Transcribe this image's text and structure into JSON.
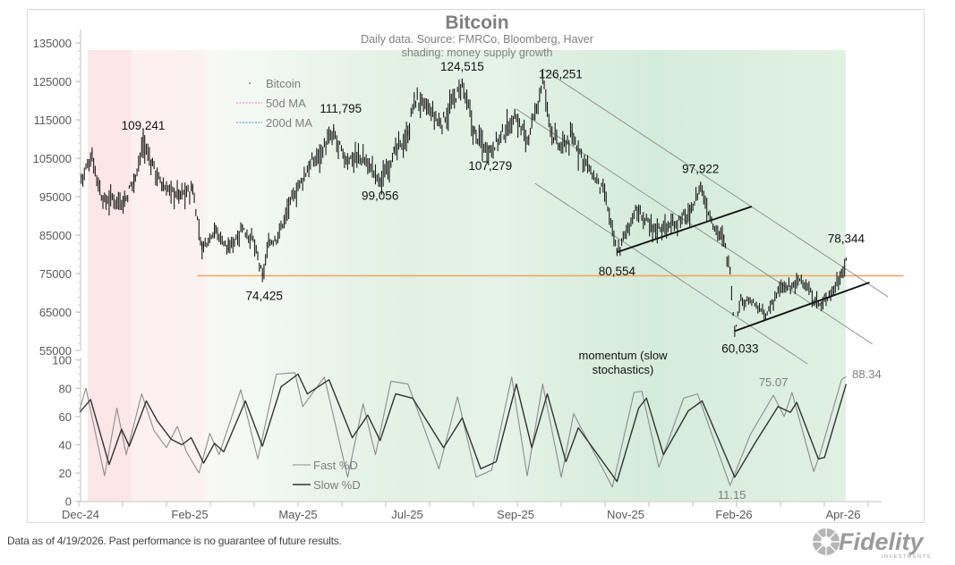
{
  "chart_data": [
    {
      "type": "bar",
      "subtype": "price-bars (daily)",
      "title": "Bitcoin",
      "subtitle_lines": [
        "Daily data.  Source: FMRCo, Bloomberg, Haver",
        "shading: money supply growth"
      ],
      "ylim": [
        55000,
        140000
      ],
      "yticks": [
        55000,
        65000,
        75000,
        85000,
        95000,
        105000,
        115000,
        125000,
        135000
      ],
      "xticks": [
        "Dec-24",
        "Feb-25",
        "May-25",
        "Jul-25",
        "Sep-25",
        "Nov-25",
        "Feb-26",
        "Apr-26"
      ],
      "legend": {
        "placement": "top-left",
        "entries": [
          {
            "label": "Bitcoin",
            "color": "#666666",
            "style": "dot"
          },
          {
            "label": "50d MA",
            "color": "#e377e0",
            "style": "dashed"
          },
          {
            "label": "200d MA",
            "color": "#4a90d9",
            "style": "dashed"
          }
        ]
      },
      "series": [
        {
          "name": "Bitcoin",
          "points": [
            [
              "2024-12-11",
              100000
            ],
            [
              "2024-12-18",
              106000
            ],
            [
              "2024-12-25",
              94000
            ],
            [
              "2024-12-31",
              95000
            ],
            [
              "2025-01-08",
              94000
            ],
            [
              "2025-01-14",
              100000
            ],
            [
              "2025-01-20",
              109241
            ],
            [
              "2025-01-26",
              104000
            ],
            [
              "2025-02-01",
              98000
            ],
            [
              "2025-02-12",
              96000
            ],
            [
              "2025-02-21",
              97000
            ],
            [
              "2025-02-27",
              82000
            ],
            [
              "2025-03-07",
              87000
            ],
            [
              "2025-03-16",
              82000
            ],
            [
              "2025-03-25",
              87000
            ],
            [
              "2025-04-01",
              84000
            ],
            [
              "2025-04-07",
              74425
            ],
            [
              "2025-04-11",
              83000
            ],
            [
              "2025-04-17",
              85000
            ],
            [
              "2025-04-25",
              94000
            ],
            [
              "2025-05-07",
              103000
            ],
            [
              "2025-05-23",
              111795
            ],
            [
              "2025-05-30",
              105000
            ],
            [
              "2025-06-08",
              106000
            ],
            [
              "2025-06-15",
              104000
            ],
            [
              "2025-06-22",
              99056
            ],
            [
              "2025-07-01",
              107000
            ],
            [
              "2025-07-10",
              111000
            ],
            [
              "2025-07-14",
              121000
            ],
            [
              "2025-07-24",
              118000
            ],
            [
              "2025-07-31",
              114000
            ],
            [
              "2025-08-14",
              124515
            ],
            [
              "2025-08-22",
              112000
            ],
            [
              "2025-08-31",
              107279
            ],
            [
              "2025-09-08",
              111000
            ],
            [
              "2025-09-17",
              116000
            ],
            [
              "2025-09-26",
              110000
            ],
            [
              "2025-10-01",
              118000
            ],
            [
              "2025-10-05",
              126251
            ],
            [
              "2025-10-10",
              113000
            ],
            [
              "2025-10-16",
              108000
            ],
            [
              "2025-10-24",
              111000
            ],
            [
              "2025-11-05",
              102000
            ],
            [
              "2025-11-14",
              96000
            ],
            [
              "2025-11-22",
              80554
            ],
            [
              "2025-12-04",
              92000
            ],
            [
              "2025-12-15",
              87000
            ],
            [
              "2025-12-27",
              88000
            ],
            [
              "2026-01-08",
              91000
            ],
            [
              "2026-01-15",
              97922
            ],
            [
              "2026-01-22",
              89000
            ],
            [
              "2026-01-30",
              84000
            ],
            [
              "2026-02-03",
              76000
            ],
            [
              "2026-02-06",
              60033
            ],
            [
              "2026-02-10",
              69000
            ],
            [
              "2026-02-20",
              67000
            ],
            [
              "2026-02-26",
              64000
            ],
            [
              "2026-03-06",
              71000
            ],
            [
              "2026-03-15",
              72000
            ],
            [
              "2026-03-21",
              74000
            ],
            [
              "2026-03-30",
              68000
            ],
            [
              "2026-04-03",
              67000
            ],
            [
              "2026-04-10",
              71000
            ],
            [
              "2026-04-16",
              75000
            ],
            [
              "2026-04-19",
              78344
            ]
          ]
        }
      ],
      "annotations": [
        {
          "text": "109,241",
          "date": "2025-01-20",
          "value": 109241
        },
        {
          "text": "111,795",
          "date": "2025-05-23",
          "value": 111795
        },
        {
          "text": "124,515",
          "date": "2025-08-14",
          "value": 124515
        },
        {
          "text": "126,251",
          "date": "2025-10-05",
          "value": 126251
        },
        {
          "text": "99,056",
          "date": "2025-06-22",
          "value": 99056
        },
        {
          "text": "107,279",
          "date": "2025-08-31",
          "value": 107279
        },
        {
          "text": "97,922",
          "date": "2026-01-15",
          "value": 97922
        },
        {
          "text": "80,554",
          "date": "2025-11-22",
          "value": 80554
        },
        {
          "text": "60,033",
          "date": "2026-02-06",
          "value": 60033
        },
        {
          "text": "78,344",
          "date": "2026-04-19",
          "value": 78344
        },
        {
          "text": "74,425",
          "date": "2025-04-07",
          "value": 74425
        }
      ],
      "reference_lines": [
        {
          "kind": "support",
          "color": "#f0a868",
          "from": [
            "2025-02-24",
            74425
          ],
          "to": [
            "2026-05-26",
            74425
          ]
        },
        {
          "kind": "channel",
          "color": "#8a8a8a",
          "from": [
            "2025-10-05",
            128256
          ],
          "to": [
            "2026-05-16",
            68953
          ]
        },
        {
          "kind": "channel",
          "color": "#8a8a8a",
          "from": [
            "2025-09-18",
            117791
          ],
          "to": [
            "2026-05-06",
            56628
          ]
        },
        {
          "kind": "channel",
          "color": "#8a8a8a",
          "from": [
            "2025-09-30",
            98488
          ],
          "to": [
            "2026-03-25",
            51512
          ]
        },
        {
          "kind": "trend",
          "color": "#111111",
          "from": [
            "2025-11-22",
            80554
          ],
          "to": [
            "2026-02-17",
            92442
          ]
        },
        {
          "kind": "trend",
          "color": "#111111",
          "from": [
            "2026-02-06",
            60033
          ],
          "to": [
            "2026-05-04",
            72674
          ]
        }
      ],
      "shading": {
        "label": "money supply growth",
        "negative_color": "#fde8ea",
        "positive_color": "#d6ecdc"
      }
    },
    {
      "type": "line",
      "title": "momentum (slow stochastics)",
      "title_lines": [
        "momentum (slow",
        "stochastics)"
      ],
      "ylim": [
        0,
        100
      ],
      "yticks": [
        0,
        20,
        40,
        60,
        80,
        100
      ],
      "legend": {
        "placement": "bottom-left",
        "entries": [
          {
            "label": "Fast %D",
            "color": "#8c8c8c"
          },
          {
            "label": "Slow %D",
            "color": "#333333"
          }
        ]
      },
      "series": [
        {
          "name": "Fast %D",
          "color": "#8c8c8c",
          "points": [
            [
              "2024-12-10",
              65
            ],
            [
              "2024-12-14",
              80
            ],
            [
              "2024-12-26",
              18
            ],
            [
              "2025-01-03",
              66
            ],
            [
              "2025-01-09",
              33
            ],
            [
              "2025-01-19",
              76
            ],
            [
              "2025-01-27",
              50
            ],
            [
              "2025-02-04",
              38
            ],
            [
              "2025-02-11",
              53
            ],
            [
              "2025-02-17",
              35
            ],
            [
              "2025-02-25",
              20
            ],
            [
              "2025-03-04",
              48
            ],
            [
              "2025-03-10",
              33
            ],
            [
              "2025-03-24",
              79
            ],
            [
              "2025-04-04",
              30
            ],
            [
              "2025-04-16",
              90
            ],
            [
              "2025-04-28",
              91
            ],
            [
              "2025-05-03",
              67
            ],
            [
              "2025-05-17",
              88
            ],
            [
              "2025-06-01",
              17
            ],
            [
              "2025-06-11",
              69
            ],
            [
              "2025-06-19",
              33
            ],
            [
              "2025-06-29",
              85
            ],
            [
              "2025-07-10",
              83
            ],
            [
              "2025-07-30",
              23
            ],
            [
              "2025-08-11",
              74
            ],
            [
              "2025-08-23",
              17
            ],
            [
              "2025-09-02",
              22
            ],
            [
              "2025-09-15",
              88
            ],
            [
              "2025-09-25",
              18
            ],
            [
              "2025-10-05",
              83
            ],
            [
              "2025-10-17",
              17
            ],
            [
              "2025-10-25",
              62
            ],
            [
              "2025-11-19",
              10
            ],
            [
              "2025-12-03",
              77
            ],
            [
              "2025-12-08",
              78
            ],
            [
              "2025-12-19",
              24
            ],
            [
              "2026-01-04",
              73
            ],
            [
              "2026-01-13",
              76
            ],
            [
              "2026-02-03",
              11.15
            ],
            [
              "2026-02-16",
              47
            ],
            [
              "2026-03-03",
              75.07
            ],
            [
              "2026-03-10",
              60
            ],
            [
              "2026-03-15",
              77
            ],
            [
              "2026-03-29",
              21
            ],
            [
              "2026-04-02",
              33
            ],
            [
              "2026-04-16",
              86
            ],
            [
              "2026-04-19",
              88.34
            ]
          ]
        },
        {
          "name": "Slow %D",
          "color": "#333333",
          "points": [
            [
              "2024-12-10",
              63
            ],
            [
              "2024-12-17",
              72
            ],
            [
              "2024-12-29",
              26
            ],
            [
              "2025-01-06",
              51
            ],
            [
              "2025-01-11",
              39
            ],
            [
              "2025-01-22",
              71
            ],
            [
              "2025-01-29",
              57
            ],
            [
              "2025-02-07",
              44
            ],
            [
              "2025-02-14",
              40
            ],
            [
              "2025-02-20",
              45
            ],
            [
              "2025-02-28",
              27
            ],
            [
              "2025-03-07",
              41
            ],
            [
              "2025-03-13",
              35
            ],
            [
              "2025-03-27",
              71
            ],
            [
              "2025-04-07",
              39
            ],
            [
              "2025-04-19",
              81
            ],
            [
              "2025-04-30",
              90
            ],
            [
              "2025-05-06",
              76
            ],
            [
              "2025-05-20",
              86
            ],
            [
              "2025-06-04",
              45
            ],
            [
              "2025-06-14",
              61
            ],
            [
              "2025-06-22",
              43
            ],
            [
              "2025-07-02",
              76
            ],
            [
              "2025-07-13",
              73
            ],
            [
              "2025-08-02",
              38
            ],
            [
              "2025-08-14",
              59
            ],
            [
              "2025-08-26",
              23
            ],
            [
              "2025-09-05",
              28
            ],
            [
              "2025-09-18",
              83
            ],
            [
              "2025-09-28",
              38
            ],
            [
              "2025-10-08",
              76
            ],
            [
              "2025-10-20",
              28
            ],
            [
              "2025-10-28",
              52
            ],
            [
              "2025-11-22",
              14
            ],
            [
              "2025-12-06",
              66
            ],
            [
              "2025-12-11",
              73
            ],
            [
              "2025-12-22",
              33
            ],
            [
              "2026-01-07",
              64
            ],
            [
              "2026-01-16",
              71
            ],
            [
              "2026-02-06",
              17
            ],
            [
              "2026-02-19",
              41
            ],
            [
              "2026-03-06",
              67
            ],
            [
              "2026-03-14",
              63
            ],
            [
              "2026-03-18",
              70
            ],
            [
              "2026-04-01",
              30
            ],
            [
              "2026-04-05",
              31
            ],
            [
              "2026-04-19",
              83
            ]
          ]
        }
      ],
      "annotations": [
        {
          "text": "75.07",
          "date": "2026-03-03",
          "value": 75.07
        },
        {
          "text": "11.15",
          "date": "2026-02-03",
          "value": 11.15
        },
        {
          "text": "88.34",
          "date": "2026-04-19",
          "value": 88.34
        }
      ]
    }
  ],
  "footer": {
    "disclaimer": "Data as of 4/19/2026. Past performance is no guarantee of future results."
  },
  "logo": {
    "text": "Fidelity",
    "subtext": "INVESTMENTS",
    "color": "#9a9a9a"
  }
}
